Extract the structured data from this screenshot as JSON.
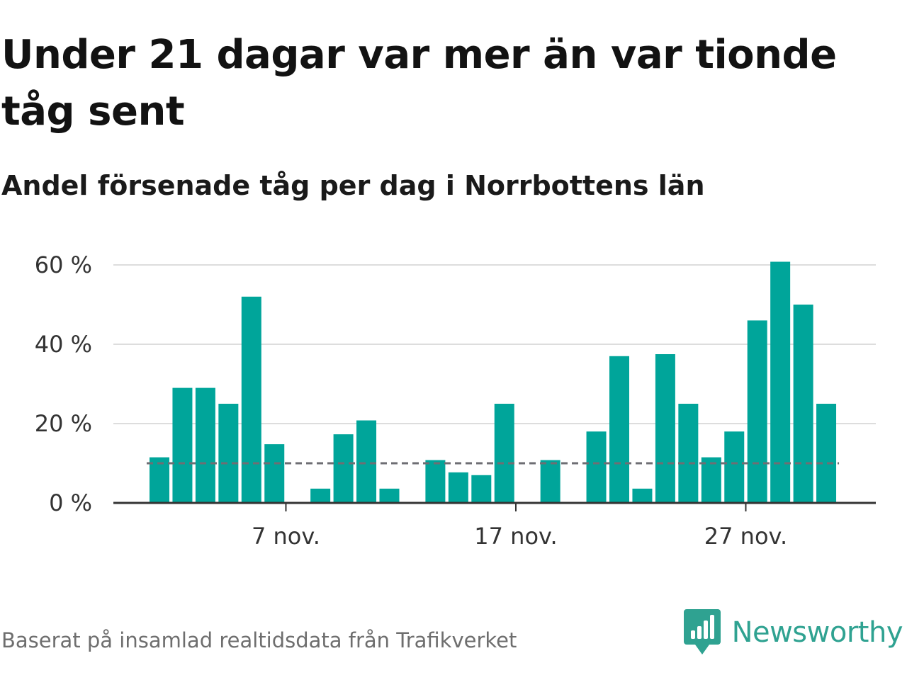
{
  "header": {
    "title": "Under 21 dagar var mer än var tionde tåg sent",
    "subtitle": "Andel försenade tåg per dag i Norrbottens län"
  },
  "footer": {
    "source": "Baserat på insamlad realtidsdata från Trafikverket",
    "brand": "Newsworthy"
  },
  "colors": {
    "bar": "#00a59a",
    "reference_line": "#6e6e73",
    "grid": "#dddddd",
    "axis": "#333333",
    "brand": "#2fa291"
  },
  "chart_data": {
    "type": "bar",
    "title": "Andel försenade tåg per dag i Norrbottens län",
    "xlabel": "",
    "ylabel": "",
    "unit": "%",
    "ylim": [
      0,
      60
    ],
    "yticks": [
      {
        "value": 0,
        "label": "0 %"
      },
      {
        "value": 20,
        "label": "20 %"
      },
      {
        "value": 40,
        "label": "40 %"
      },
      {
        "value": 60,
        "label": "60 %"
      }
    ],
    "xticks": [
      {
        "date": "2019-11-07",
        "label": "7 nov."
      },
      {
        "date": "2019-11-17",
        "label": "17 nov."
      },
      {
        "date": "2019-11-27",
        "label": "27 nov."
      }
    ],
    "grid": true,
    "reference_line": {
      "value": 10,
      "style": "dashed"
    },
    "categories": [
      "2019-11-01",
      "2019-11-02",
      "2019-11-03",
      "2019-11-04",
      "2019-11-05",
      "2019-11-06",
      "2019-11-07",
      "2019-11-08",
      "2019-11-09",
      "2019-11-10",
      "2019-11-11",
      "2019-11-12",
      "2019-11-13",
      "2019-11-14",
      "2019-11-15",
      "2019-11-16",
      "2019-11-17",
      "2019-11-18",
      "2019-11-19",
      "2019-11-20",
      "2019-11-21",
      "2019-11-22",
      "2019-11-23",
      "2019-11-24",
      "2019-11-25",
      "2019-11-26",
      "2019-11-27",
      "2019-11-28",
      "2019-11-29",
      "2019-11-30"
    ],
    "values": [
      11.5,
      29,
      29,
      25,
      52,
      14.8,
      0,
      3.6,
      17.3,
      20.8,
      3.6,
      0,
      10.8,
      7.7,
      7,
      25,
      0,
      10.8,
      0,
      18,
      37,
      3.6,
      37.5,
      25,
      11.5,
      18,
      46,
      60.8,
      50,
      25
    ]
  }
}
